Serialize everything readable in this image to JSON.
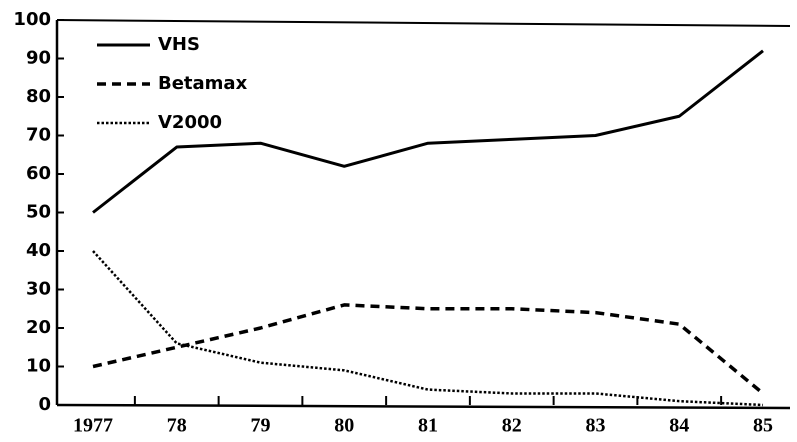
{
  "chart_data": {
    "type": "line",
    "categories": [
      "1977",
      "78",
      "79",
      "80",
      "81",
      "82",
      "83",
      "84",
      "85"
    ],
    "series": [
      {
        "name": "VHS",
        "color": "#000000",
        "dash": "solid",
        "values": [
          50,
          67,
          68,
          62,
          68,
          69,
          70,
          75,
          92
        ]
      },
      {
        "name": "Betamax",
        "color": "#000000",
        "dash": "dashed",
        "values": [
          10,
          15,
          20,
          26,
          25,
          25,
          24,
          21,
          3
        ]
      },
      {
        "name": "V2000",
        "color": "#000000",
        "dash": "dotted",
        "values": [
          40,
          16,
          11,
          9,
          4,
          3,
          3,
          1,
          0
        ]
      }
    ],
    "ylim": [
      0,
      100
    ],
    "yticks": [
      0,
      10,
      20,
      30,
      40,
      50,
      60,
      70,
      80,
      90,
      100
    ],
    "legend": "top-left",
    "grid": false
  }
}
